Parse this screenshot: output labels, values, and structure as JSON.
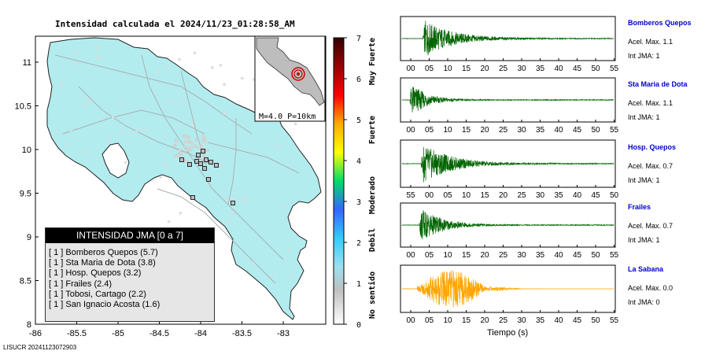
{
  "map": {
    "title": "Intensidad calculada el 2024/11/23_01:28:58_AM",
    "x_ticks": [
      "-86",
      "-85.5",
      "-85",
      "-84.5",
      "-84",
      "-83.5",
      "-83"
    ],
    "y_ticks": [
      "11",
      "10.5",
      "10",
      "9.5",
      "9",
      "8.5",
      "8"
    ],
    "inset_label": "M=4.0 P=10km",
    "footer": "LISUCR 20241123072903"
  },
  "colorbar": {
    "ticks": [
      "7",
      "6",
      "5",
      "4",
      "3",
      "2",
      "1",
      "0"
    ],
    "levels": [
      "Muy Fuerte",
      "Fuerte",
      "Moderado",
      "Debil",
      "No sentido"
    ]
  },
  "jma_legend": {
    "title": "INTENSIDAD JMA [0 a 7]",
    "items": [
      "[ 1 ]  Bomberos Quepos (5.7)",
      "[ 1 ]  Sta Maria de Dota (3.8)",
      "[ 1 ]  Hosp. Quepos (3.2)",
      "[ 1 ]  Frailes (2.4)",
      "[ 1 ]  Tobosi, Cartago (2.2)",
      "[ 1 ]  San Ignacio Acosta (1.6)"
    ]
  },
  "waveform_xlabel": "Tiempo (s)",
  "chart_data": [
    {
      "type": "scatter",
      "title": "Intensidad calculada el 2024/11/23_01:28:58_AM",
      "xlim": [
        -86,
        -82.5
      ],
      "ylim": [
        8,
        11.25
      ],
      "epicenter": {
        "lon": -84.0,
        "lat": 9.9
      },
      "stations": [
        {
          "name": "Bomberos Quepos",
          "lon": -84.16,
          "lat": 9.43,
          "jma": 1,
          "value": 5.7
        },
        {
          "name": "Sta Maria de Dota",
          "lon": -83.97,
          "lat": 9.65,
          "jma": 1,
          "value": 3.8
        },
        {
          "name": "Hosp. Quepos",
          "lon": -84.15,
          "lat": 9.44,
          "jma": 1,
          "value": 3.2
        },
        {
          "name": "Frailes",
          "lon": -84.02,
          "lat": 9.77,
          "jma": 1,
          "value": 2.4
        },
        {
          "name": "Tobosi, Cartago",
          "lon": -83.98,
          "lat": 9.83,
          "jma": 1,
          "value": 2.2
        },
        {
          "name": "San Ignacio Acosta",
          "lon": -84.15,
          "lat": 9.8,
          "jma": 1,
          "value": 1.6
        }
      ]
    },
    {
      "type": "heatmap",
      "colorbar": true,
      "ylim": [
        0,
        7
      ],
      "ticks": [
        0,
        1,
        2,
        3,
        4,
        5,
        6,
        7
      ],
      "colors": [
        "#ffffff",
        "#bfbfbf",
        "#9be0f0",
        "#33ccff",
        "#3366ff",
        "#00dd66",
        "#ffff00",
        "#ffaa00",
        "#ff0000",
        "#990000",
        "#330000"
      ]
    },
    {
      "type": "line",
      "series": [
        {
          "name": "Bomberos Quepos",
          "acel": "Acel. Max. 1.1",
          "jma": "Int JMA: 1",
          "color": "#006400",
          "t0": 5.5,
          "duration": 30,
          "x_ticks": [
            "00",
            "05",
            "10",
            "15",
            "20",
            "25",
            "30",
            "35",
            "40",
            "45",
            "50",
            "55"
          ]
        },
        {
          "name": "Sta Maria de Dota",
          "acel": "Acel. Max. 1.1",
          "jma": "Int JMA: 1",
          "color": "#006400",
          "t0": 2,
          "duration": 16,
          "x_ticks": [
            "00",
            "05",
            "10",
            "15",
            "20",
            "25",
            "30",
            "35",
            "40",
            "45",
            "50",
            "55"
          ]
        },
        {
          "name": "Hosp. Quepos",
          "acel": "Acel. Max. 0.7",
          "jma": "Int JMA: 1",
          "color": "#006400",
          "t0": 5,
          "duration": 30,
          "x_ticks": [
            "55",
            "00",
            "05",
            "10",
            "15",
            "20",
            "25",
            "30",
            "35",
            "40",
            "45",
            "50"
          ]
        },
        {
          "name": "Frailes",
          "acel": "Acel. Max. 0.7",
          "jma": "Int JMA: 1",
          "color": "#006400",
          "t0": 4.5,
          "duration": 22,
          "x_ticks": [
            "00",
            "05",
            "10",
            "15",
            "20",
            "25",
            "30",
            "35",
            "40",
            "45",
            "50",
            "55"
          ]
        },
        {
          "name": "La Sabana",
          "acel": "Acel. Max. 0.0",
          "jma": "Int JMA: 0",
          "color": "#ffa500",
          "t0": 4,
          "duration": 20,
          "x_ticks": [
            "00",
            "05",
            "10",
            "15",
            "20",
            "25",
            "30",
            "35",
            "40",
            "45",
            "50",
            "55"
          ]
        }
      ]
    }
  ]
}
